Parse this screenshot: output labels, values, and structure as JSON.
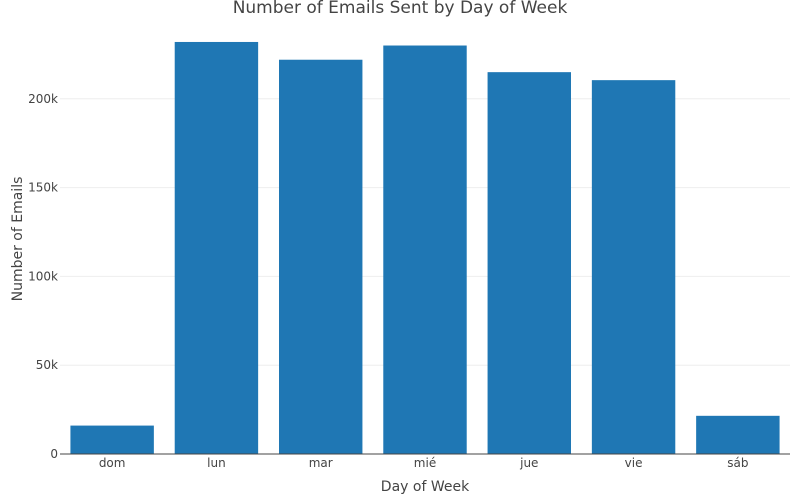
{
  "chart_data": {
    "type": "bar",
    "title": "Number of Emails Sent by Day of Week",
    "xlabel": "Day of Week",
    "ylabel": "Number of Emails",
    "categories": [
      "dom",
      "lun",
      "mar",
      "mié",
      "jue",
      "vie",
      "sáb"
    ],
    "values": [
      16000,
      232000,
      222000,
      230000,
      215000,
      210500,
      21500
    ],
    "ylim": [
      0,
      250000
    ],
    "yticks": [
      0,
      50000,
      100000,
      150000,
      200000
    ],
    "ytick_labels": [
      "0",
      "50k",
      "100k",
      "150k",
      "200k"
    ],
    "grid": true,
    "bar_color": "#1f77b4"
  }
}
